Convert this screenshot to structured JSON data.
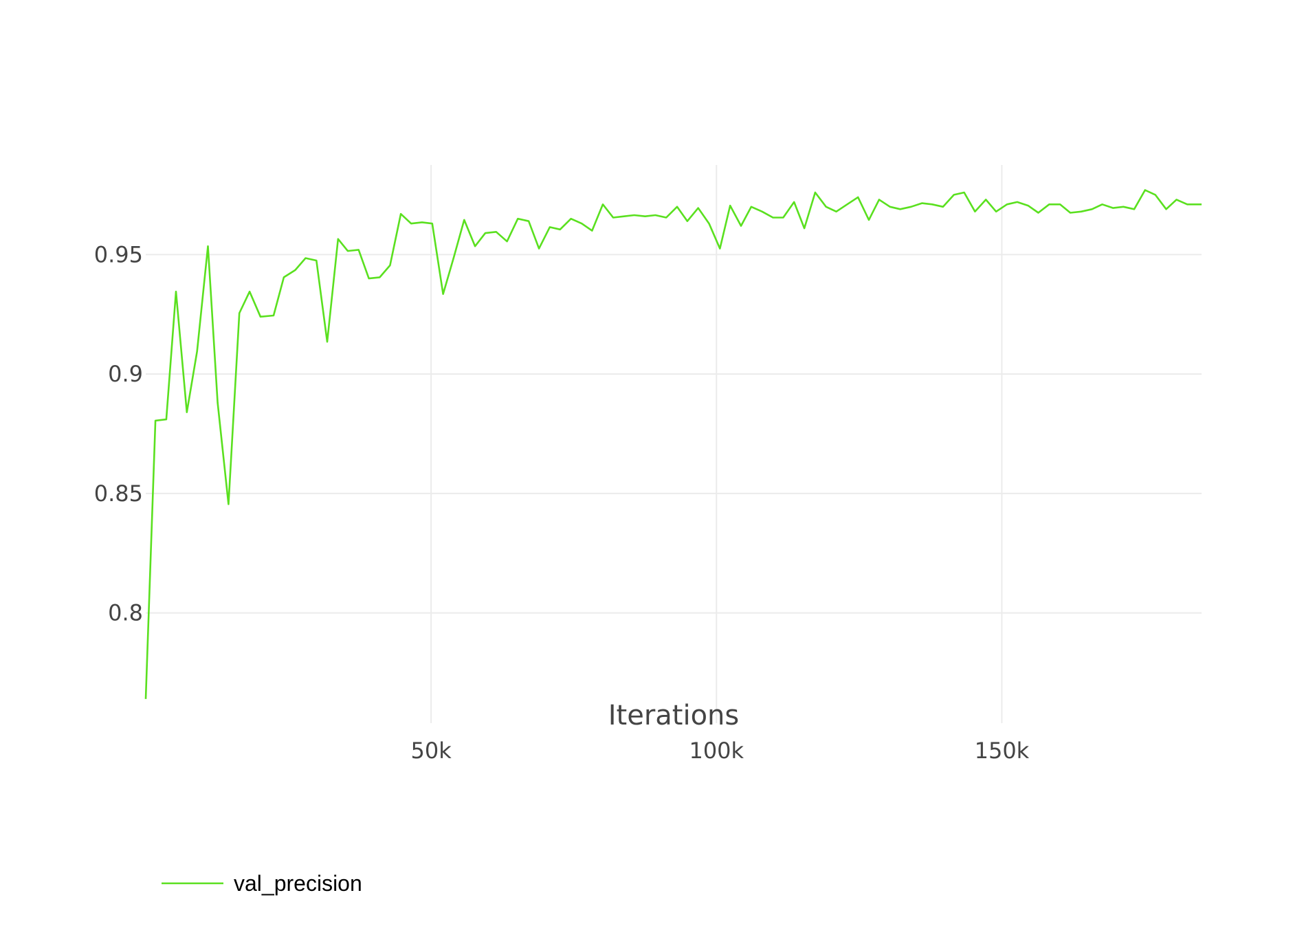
{
  "chart_data": {
    "type": "line",
    "title": "",
    "xlabel": "Iterations",
    "ylabel": "",
    "xlim": [
      0,
      185000
    ],
    "ylim": [
      0.7625,
      0.9875
    ],
    "grid": true,
    "legend_position": "bottom-left",
    "x_ticks": [
      {
        "value": 50000,
        "label": "50k"
      },
      {
        "value": 100000,
        "label": "100k"
      },
      {
        "value": 150000,
        "label": "150k"
      }
    ],
    "y_ticks": [
      {
        "value": 0.8,
        "label": "0.8"
      },
      {
        "value": 0.85,
        "label": "0.85"
      },
      {
        "value": 0.9,
        "label": "0.9"
      },
      {
        "value": 0.95,
        "label": "0.95"
      }
    ],
    "series": [
      {
        "name": "val_precision",
        "color": "#5ae01f",
        "x": [
          0,
          1700,
          3600,
          5300,
          7200,
          9000,
          10900,
          12600,
          14500,
          16400,
          18200,
          20100,
          22400,
          24200,
          26200,
          28000,
          29900,
          31800,
          33700,
          35400,
          37300,
          39100,
          41000,
          42800,
          44700,
          46500,
          48400,
          50200,
          52100,
          54000,
          55800,
          57700,
          59500,
          61400,
          63300,
          65200,
          67100,
          68900,
          70800,
          72600,
          74500,
          76400,
          78200,
          80100,
          81900,
          83800,
          85600,
          87500,
          89300,
          91200,
          93100,
          94900,
          96800,
          98700,
          100600,
          102400,
          104300,
          106100,
          108000,
          109900,
          111700,
          113600,
          115400,
          117300,
          119200,
          121000,
          122900,
          124800,
          126700,
          128500,
          130400,
          132200,
          134100,
          136000,
          137800,
          139700,
          141600,
          143400,
          145300,
          147200,
          149000,
          150900,
          152700,
          154600,
          156400,
          158300,
          160200,
          162000,
          163900,
          165800,
          167600,
          169500,
          171300,
          173200,
          175100,
          176900,
          178800,
          180600,
          182500,
          184300,
          185000
        ],
        "values": [
          0.764,
          0.8805,
          0.881,
          0.9345,
          0.884,
          0.9095,
          0.9535,
          0.888,
          0.8455,
          0.9255,
          0.9345,
          0.924,
          0.9245,
          0.9405,
          0.9435,
          0.9485,
          0.9475,
          0.9135,
          0.9565,
          0.9515,
          0.952,
          0.94,
          0.9405,
          0.9455,
          0.967,
          0.963,
          0.9635,
          0.963,
          0.9335,
          0.949,
          0.9645,
          0.9535,
          0.959,
          0.9595,
          0.9555,
          0.965,
          0.964,
          0.9525,
          0.9615,
          0.9605,
          0.965,
          0.963,
          0.96,
          0.971,
          0.9655,
          0.966,
          0.9665,
          0.966,
          0.9665,
          0.9655,
          0.97,
          0.964,
          0.9695,
          0.963,
          0.9525,
          0.9705,
          0.962,
          0.97,
          0.968,
          0.9655,
          0.9655,
          0.972,
          0.961,
          0.976,
          0.97,
          0.968,
          0.971,
          0.974,
          0.9645,
          0.973,
          0.97,
          0.969,
          0.97,
          0.9715,
          0.971,
          0.97,
          0.975,
          0.976,
          0.968,
          0.973,
          0.968,
          0.971,
          0.972,
          0.9705,
          0.9675,
          0.971,
          0.971,
          0.9675,
          0.968,
          0.969,
          0.971,
          0.9695,
          0.97,
          0.969,
          0.977,
          0.975,
          0.969,
          0.973,
          0.971,
          0.971,
          0.971
        ]
      }
    ]
  }
}
